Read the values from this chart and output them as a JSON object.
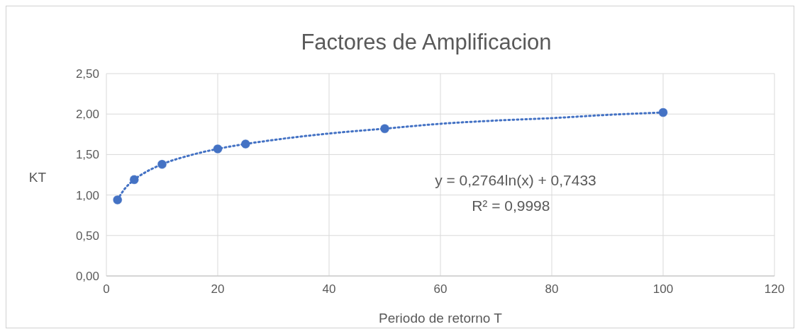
{
  "chart_data": {
    "type": "scatter",
    "title": "Factores de Amplificacion",
    "xlabel": "Periodo de retorno T",
    "ylabel": "KT",
    "xlim": [
      0,
      120
    ],
    "xticks": [
      0,
      20,
      40,
      60,
      80,
      100,
      120
    ],
    "ylim": [
      0,
      2.5
    ],
    "yticks": [
      {
        "value": 0,
        "label": "0,00"
      },
      {
        "value": 0.5,
        "label": "0,50"
      },
      {
        "value": 1,
        "label": "1,00"
      },
      {
        "value": 1.5,
        "label": "1,50"
      },
      {
        "value": 2,
        "label": "2,00"
      },
      {
        "value": 2.5,
        "label": "2,50"
      }
    ],
    "grid": true,
    "marker": "circle",
    "series": [
      {
        "color": "#4472c4",
        "x": [
          2,
          5,
          10,
          20,
          25,
          50,
          100
        ],
        "values": [
          0.94,
          1.19,
          1.38,
          1.57,
          1.63,
          1.82,
          2.02
        ]
      },
      {
        "type": "line",
        "color": "#4472c4",
        "line_style": "dotted",
        "marker": "none",
        "x": [
          2,
          3,
          5,
          7,
          10,
          15,
          20,
          30,
          40,
          50,
          60,
          70,
          80,
          90,
          100
        ],
        "values": [
          0.94,
          1.05,
          1.19,
          1.28,
          1.38,
          1.49,
          1.57,
          1.68,
          1.76,
          1.82,
          1.88,
          1.92,
          1.95,
          1.99,
          2.02
        ]
      }
    ],
    "annotations": [
      "y = 0,2764ln(x) + 0,7433",
      "R² = 0,9998"
    ]
  }
}
